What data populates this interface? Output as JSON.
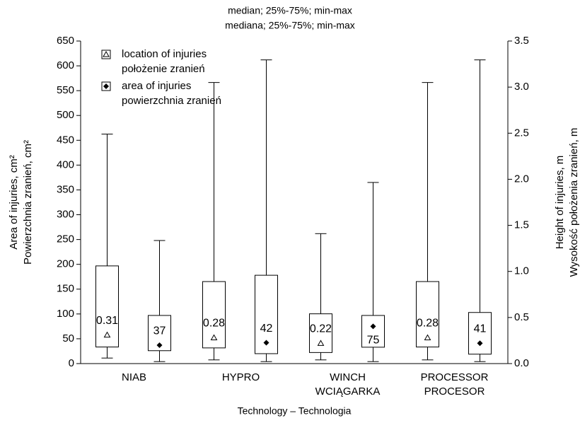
{
  "chart_data": {
    "type": "box",
    "title": [
      "median; 25%-75%; min-max",
      "mediana; 25%-75%; min-max"
    ],
    "x_label": "Technology – Technologia",
    "y_label": [
      "Area of injuries, cm²",
      "Powierzchnia zranień, cm²"
    ],
    "y2_label": [
      "Height of injuries, m",
      "Wysokość położenia zranień, m"
    ],
    "categories": [
      [
        "NIAB"
      ],
      [
        "HYPRO"
      ],
      [
        "WINCH",
        "WCIĄGARKA"
      ],
      [
        "PROCESSOR",
        "PROCESOR"
      ]
    ],
    "ylim": [
      0,
      650
    ],
    "yticks": [
      0,
      50,
      100,
      150,
      200,
      250,
      300,
      350,
      400,
      450,
      500,
      550,
      600,
      650
    ],
    "y2lim": [
      0,
      3.5
    ],
    "y2ticks": [
      {
        "value": 0,
        "label": "0.0"
      },
      0.5,
      {
        "value": 1,
        "label": "1.0"
      },
      1.5,
      {
        "value": 2,
        "label": "2.0"
      },
      2.5,
      {
        "value": 3,
        "label": "3.0"
      },
      3.5
    ],
    "series": [
      {
        "name": [
          "location of injuries",
          "położenie zranień"
        ],
        "axis": "y2",
        "marker": "triangle",
        "min": [
          0.06,
          0.04,
          0.04,
          0.04
        ],
        "q1": [
          0.18,
          0.17,
          0.12,
          0.18
        ],
        "median": [
          0.31,
          0.28,
          0.22,
          0.28
        ],
        "q3": [
          1.06,
          0.89,
          0.54,
          0.89
        ],
        "max": [
          2.49,
          3.05,
          1.41,
          3.05
        ]
      },
      {
        "name": [
          "area of injuries",
          "powierzchnia zranień"
        ],
        "axis": "y",
        "marker": "diamond",
        "min": [
          4,
          4,
          4,
          4
        ],
        "q1": [
          26,
          20,
          33,
          19
        ],
        "median": [
          37,
          42,
          75,
          41
        ],
        "q3": [
          97,
          178,
          97,
          103
        ],
        "max": [
          248,
          612,
          365,
          612
        ]
      }
    ]
  }
}
